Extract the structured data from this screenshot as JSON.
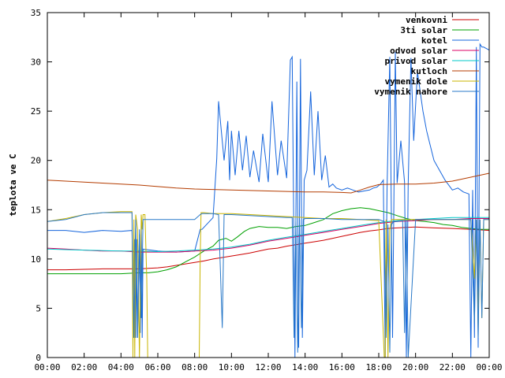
{
  "chart_data": {
    "type": "line",
    "title": "",
    "xlabel": "",
    "ylabel": "teplota ve C",
    "xlim": [
      0,
      24
    ],
    "ylim": [
      0,
      35
    ],
    "xticks": [
      0,
      2,
      4,
      6,
      8,
      10,
      12,
      14,
      16,
      18,
      20,
      22,
      24
    ],
    "xtick_labels": [
      "00:00",
      "02:00",
      "04:00",
      "06:00",
      "08:00",
      "10:00",
      "12:00",
      "14:00",
      "16:00",
      "18:00",
      "20:00",
      "22:00",
      "00:00"
    ],
    "yticks": [
      0,
      5,
      10,
      15,
      20,
      25,
      30,
      35
    ],
    "ytick_labels": [
      "0",
      "5",
      "10",
      "15",
      "20",
      "25",
      "30",
      "35"
    ],
    "grid": false,
    "legend": "top-right",
    "series": [
      {
        "name": "venkovni",
        "color": "#cc0000",
        "x": [
          0,
          1,
          2,
          3,
          4,
          5,
          6,
          6.5,
          7,
          7.5,
          8,
          8.5,
          9,
          9.5,
          10,
          10.5,
          11,
          11.5,
          12,
          12.5,
          13,
          13.5,
          14,
          14.5,
          15,
          15.5,
          16,
          16.5,
          17,
          17.5,
          18,
          18.5,
          19,
          19.5,
          20,
          21,
          22,
          23,
          23.5,
          24
        ],
        "y": [
          8.9,
          8.9,
          8.95,
          9.0,
          9.0,
          9.0,
          9.1,
          9.2,
          9.35,
          9.5,
          9.65,
          9.8,
          10.0,
          10.15,
          10.3,
          10.45,
          10.6,
          10.8,
          11.0,
          11.1,
          11.3,
          11.45,
          11.6,
          11.75,
          11.9,
          12.1,
          12.3,
          12.5,
          12.7,
          12.85,
          12.95,
          13.1,
          13.15,
          13.2,
          13.25,
          13.15,
          13.1,
          13.0,
          12.95,
          12.9
        ]
      },
      {
        "name": "3ti solar",
        "color": "#00a000",
        "x": [
          0,
          1,
          2,
          3,
          4,
          5,
          5.5,
          6,
          6.5,
          7,
          7.5,
          8,
          8.5,
          9,
          9.3,
          9.7,
          10,
          10.3,
          10.7,
          11,
          11.5,
          12,
          12.5,
          13,
          13.5,
          14,
          14.5,
          15,
          15.5,
          16,
          16.5,
          17,
          17.5,
          18,
          18.5,
          19,
          19.5,
          20,
          20.5,
          21,
          21.5,
          22,
          22.5,
          23,
          23.5,
          24
        ],
        "y": [
          8.5,
          8.5,
          8.5,
          8.5,
          8.5,
          8.6,
          8.6,
          8.7,
          8.9,
          9.2,
          9.7,
          10.2,
          10.8,
          11.3,
          11.9,
          12.1,
          11.8,
          12.2,
          12.8,
          13.1,
          13.3,
          13.2,
          13.2,
          13.1,
          13.3,
          13.4,
          13.7,
          14.0,
          14.6,
          14.9,
          15.1,
          15.2,
          15.1,
          14.9,
          14.7,
          14.4,
          14.1,
          13.9,
          13.8,
          13.7,
          13.5,
          13.4,
          13.2,
          13.1,
          13.0,
          13.0
        ]
      },
      {
        "name": "kotel",
        "color": "#1464dc",
        "x": [
          0,
          1,
          2,
          3,
          4,
          4.6,
          4.7,
          4.75,
          4.8,
          4.85,
          4.9,
          5.0,
          5.05,
          5.1,
          5.15,
          5.2,
          6,
          7,
          8,
          8.3,
          8.4,
          8.5,
          9.0,
          9.2,
          9.3,
          9.4,
          9.6,
          9.8,
          9.9,
          10.0,
          10.2,
          10.4,
          10.6,
          10.8,
          11.0,
          11.2,
          11.5,
          11.7,
          12.0,
          12.2,
          12.5,
          12.7,
          13.0,
          13.2,
          13.3,
          13.45,
          13.55,
          13.65,
          13.75,
          13.85,
          13.95,
          14.1,
          14.3,
          14.5,
          14.7,
          14.9,
          15.1,
          15.3,
          15.5,
          15.7,
          16.0,
          16.3,
          16.6,
          16.9,
          17.2,
          17.5,
          17.7,
          17.9,
          18.1,
          18.25,
          18.35,
          18.45,
          18.6,
          18.75,
          18.9,
          19.0,
          19.2,
          19.4,
          19.5,
          19.6,
          19.75,
          19.9,
          20.1,
          20.4,
          20.6,
          20.8,
          21.0,
          21.3,
          21.6,
          22.0,
          22.3,
          22.6,
          22.9,
          23.0,
          23.1,
          23.2,
          23.3,
          23.4,
          23.5,
          23.6,
          23.7,
          23.8,
          23.9,
          24.0
        ],
        "y": [
          12.9,
          12.9,
          12.7,
          12.9,
          12.8,
          12.9,
          2.0,
          12.0,
          2.0,
          12.0,
          2.0,
          12.5,
          2.5,
          13.5,
          2.0,
          11.0,
          10.8,
          10.7,
          10.8,
          13.0,
          13.0,
          13.2,
          14.2,
          20.2,
          26.0,
          24.0,
          20.0,
          24.0,
          18.0,
          23.0,
          18.5,
          23.0,
          19.0,
          22.5,
          18.3,
          21.0,
          17.8,
          22.7,
          17.8,
          26.0,
          18.5,
          22.0,
          18.2,
          30.2,
          30.5,
          0.0,
          28.0,
          1.0,
          30.3,
          2.0,
          18.0,
          19.0,
          27.0,
          18.5,
          25.0,
          18.0,
          20.5,
          17.3,
          17.6,
          17.2,
          17.0,
          17.2,
          17.0,
          16.8,
          16.9,
          17.0,
          17.2,
          17.3,
          17.6,
          18.0,
          0.0,
          17.0,
          30.5,
          2.0,
          31.0,
          17.7,
          22.0,
          17.8,
          0.0,
          17.5,
          30.4,
          22.0,
          29.0,
          25.0,
          23.0,
          21.5,
          20.0,
          19.0,
          18.0,
          17.0,
          17.2,
          16.8,
          16.6,
          0.0,
          17.0,
          2.0,
          31.5,
          1.0,
          31.8,
          31.5,
          31.5,
          31.4,
          31.3,
          31.2
        ]
      },
      {
        "name": "odvod solar",
        "color": "#dc0064",
        "x": [
          0,
          1,
          2,
          3,
          4,
          5,
          6,
          7,
          8,
          9,
          10,
          11,
          12,
          13,
          14,
          15,
          16,
          17,
          18,
          19,
          20,
          21,
          22,
          23,
          24
        ],
        "y": [
          11.1,
          11.0,
          10.9,
          10.8,
          10.8,
          10.7,
          10.7,
          10.7,
          10.8,
          10.9,
          11.1,
          11.4,
          11.8,
          12.1,
          12.4,
          12.7,
          13.0,
          13.3,
          13.6,
          13.8,
          13.9,
          14.0,
          14.0,
          14.1,
          14.1
        ]
      },
      {
        "name": "privod solar",
        "color": "#00c8c8",
        "x": [
          0,
          1,
          2,
          3,
          4,
          5,
          6,
          7,
          8,
          9,
          10,
          11,
          12,
          13,
          14,
          15,
          16,
          17,
          18,
          19,
          20,
          21,
          22,
          23,
          24
        ],
        "y": [
          11.0,
          10.95,
          10.9,
          10.85,
          10.8,
          10.8,
          10.75,
          10.8,
          10.9,
          11.0,
          11.2,
          11.5,
          11.9,
          12.2,
          12.5,
          12.8,
          13.1,
          13.4,
          13.7,
          13.9,
          14.0,
          14.1,
          14.2,
          14.2,
          14.2
        ]
      },
      {
        "name": "kutloch",
        "color": "#b43c00",
        "x": [
          0,
          1,
          2,
          3,
          4,
          5,
          6,
          7,
          8,
          9,
          10,
          11,
          12,
          13,
          14,
          15,
          16,
          16.5,
          17,
          17.5,
          18,
          19,
          20,
          21,
          22,
          23,
          24
        ],
        "y": [
          18.0,
          17.9,
          17.8,
          17.7,
          17.6,
          17.5,
          17.35,
          17.2,
          17.1,
          17.05,
          17.0,
          16.95,
          16.9,
          16.85,
          16.8,
          16.8,
          16.75,
          16.7,
          17.0,
          17.3,
          17.55,
          17.6,
          17.6,
          17.7,
          17.9,
          18.3,
          18.7
        ]
      },
      {
        "name": "vymenik dole",
        "color": "#c8b400",
        "x": [
          0,
          1,
          2,
          3,
          4,
          4.6,
          4.65,
          4.7,
          4.75,
          4.8,
          4.9,
          5.0,
          5.1,
          5.15,
          5.2,
          5.3,
          5.4,
          5.45,
          5.5,
          6.0,
          7.0,
          8.0,
          8.1,
          8.2,
          8.25,
          8.3,
          8.35,
          8.4,
          8.5,
          9.0,
          10,
          11,
          12,
          13,
          14,
          15,
          16,
          17,
          18,
          18.3,
          18.35,
          18.4,
          18.5,
          18.6,
          18.7,
          19,
          20,
          21,
          22,
          23,
          23.2,
          23.3,
          23.4,
          23.5,
          23.6,
          23.7,
          24
        ],
        "y": [
          13.8,
          14.1,
          14.5,
          14.7,
          14.8,
          14.8,
          0.0,
          14.0,
          0.0,
          14.5,
          13.0,
          0.0,
          14.5,
          13.0,
          14.5,
          14.5,
          8.0,
          0.0,
          0.0,
          0.0,
          0.0,
          0.0,
          0.0,
          0.0,
          0.0,
          10.0,
          14.7,
          14.7,
          14.7,
          14.6,
          14.6,
          14.5,
          14.4,
          14.3,
          14.2,
          14.1,
          14.1,
          14.0,
          13.9,
          0.0,
          0.0,
          14.0,
          0.0,
          13.0,
          14.0,
          14.0,
          14.0,
          14.0,
          14.0,
          14.0,
          8.0,
          14.0,
          3.0,
          14.0,
          4.0,
          14.0,
          14.0
        ]
      },
      {
        "name": "vymenik nahore",
        "color": "#2878c8",
        "x": [
          0,
          1,
          2,
          3,
          4,
          4.6,
          4.7,
          4.8,
          4.9,
          5.0,
          5.1,
          5.2,
          6.0,
          7.0,
          8.0,
          8.3,
          8.4,
          8.5,
          9.0,
          9.3,
          9.5,
          9.6,
          10,
          11,
          12,
          13,
          13.3,
          13.4,
          13.5,
          13.6,
          13.7,
          13.8,
          13.9,
          14,
          15,
          16,
          17,
          18,
          18.3,
          18.4,
          18.5,
          18.6,
          18.7,
          18.8,
          19,
          19.3,
          19.4,
          19.5,
          19.6,
          20,
          21,
          22,
          23,
          23.2,
          23.3,
          23.4,
          23.5,
          23.6,
          23.7,
          24
        ],
        "y": [
          13.8,
          14.0,
          14.5,
          14.7,
          14.7,
          14.7,
          2.0,
          14.0,
          2.0,
          13.0,
          4.0,
          14.0,
          14.0,
          14.0,
          14.0,
          14.5,
          14.6,
          14.6,
          14.6,
          14.5,
          3.0,
          14.5,
          14.5,
          14.4,
          14.3,
          14.2,
          14.2,
          2.0,
          14.0,
          0.5,
          14.0,
          3.0,
          14.0,
          14.1,
          14.1,
          14.0,
          14.0,
          14.0,
          13.8,
          2.0,
          13.5,
          0.5,
          13.5,
          13.8,
          13.8,
          13.9,
          2.5,
          13.9,
          0.0,
          14.0,
          14.0,
          14.0,
          14.0,
          3.5,
          14.0,
          2.0,
          14.0,
          4.0,
          14.0,
          14.0
        ]
      }
    ]
  }
}
